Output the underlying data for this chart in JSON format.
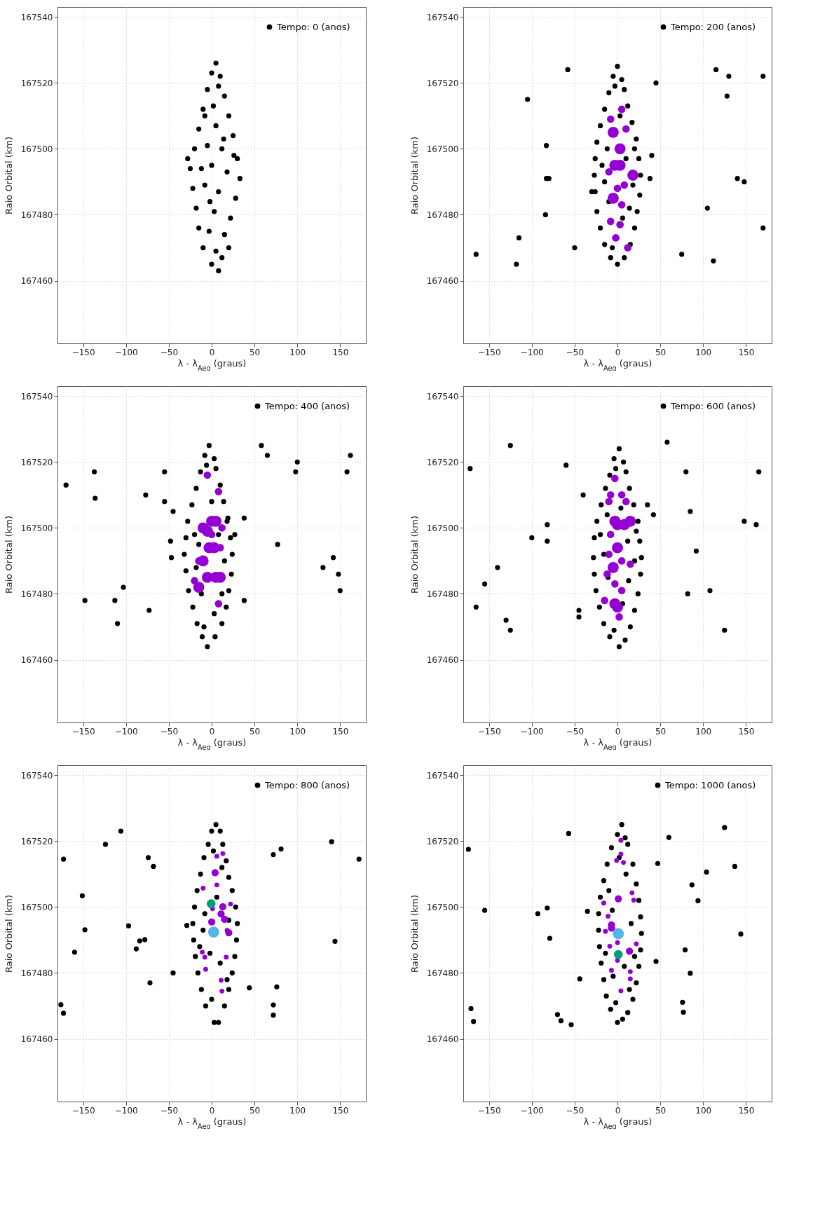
{
  "chart_data": [
    {
      "type": "scatter",
      "xlabel": "λ - λ$_{Aeg}$ (graus)",
      "ylabel": "Raio Orbital (km)",
      "xlim": [
        -180,
        180
      ],
      "ylim": [
        167441,
        167543
      ],
      "xticks": [
        -150,
        -100,
        -50,
        0,
        50,
        100,
        150
      ],
      "yticks": [
        167460,
        167480,
        167500,
        167520,
        167540
      ],
      "grid": true,
      "legend": "top right",
      "marker": "circle",
      "series": [
        {
          "name": "Tempo: 0 (anos)",
          "color": "#000000",
          "x": [
            5,
            0,
            10,
            -5,
            8,
            15,
            -10,
            2,
            20,
            -15,
            5,
            25,
            -20,
            -5,
            12,
            30,
            -25,
            0,
            18,
            33,
            -22,
            -8,
            8,
            28,
            -18,
            3,
            22,
            -15,
            -3,
            15,
            -10,
            5,
            12,
            0,
            8,
            -28,
            26,
            -12,
            14,
            -2,
            20,
            -8
          ],
          "values": [
            167526,
            167523,
            167522,
            167518,
            167519,
            167516,
            167512,
            167513,
            167510,
            167506,
            167507,
            167504,
            167500,
            167501,
            167500,
            167497,
            167494,
            167495,
            167493,
            167491,
            167488,
            167489,
            167487,
            167485,
            167482,
            167481,
            167479,
            167476,
            167475,
            167474,
            167470,
            167469,
            167467,
            167465,
            167463,
            167497,
            167498,
            167494,
            167503,
            167484,
            167470,
            167510
          ]
        }
      ]
    },
    {
      "type": "scatter",
      "xlabel": "λ - λ$_{Aeg}$ (graus)",
      "ylabel": "Raio Orbital (km)",
      "xlim": [
        -180,
        180
      ],
      "ylim": [
        167441,
        167543
      ],
      "xticks": [
        -150,
        -100,
        -50,
        0,
        50,
        100,
        150
      ],
      "yticks": [
        167460,
        167480,
        167500,
        167520,
        167540
      ],
      "grid": true,
      "legend": "top right",
      "marker": "circle",
      "series": [
        {
          "name": "Tempo: 200 (anos)",
          "color": "#000000",
          "x": [
            0,
            -5,
            5,
            -10,
            8,
            -15,
            12,
            -20,
            17,
            -24,
            22,
            -26,
            25,
            -27,
            27,
            -26,
            26,
            -24,
            23,
            -20,
            20,
            -15,
            15,
            -8,
            8,
            0,
            -12,
            10,
            -15,
            14,
            -3,
            3,
            -18,
            18,
            -6,
            6,
            -10,
            20,
            -58,
            -105,
            45,
            115,
            130,
            128,
            170,
            -83,
            -83,
            -80,
            -84,
            -115,
            -118,
            -165,
            -50,
            40,
            38,
            140,
            148,
            105,
            170,
            75,
            112,
            -30
          ],
          "values": [
            167525,
            167522,
            167521,
            167517,
            167518,
            167512,
            167513,
            167507,
            167508,
            167502,
            167503,
            167497,
            167497,
            167492,
            167492,
            167487,
            167486,
            167481,
            167481,
            167476,
            167476,
            167471,
            167471,
            167467,
            167467,
            167465,
            167500,
            167497,
            167490,
            167482,
            167519,
            167510,
            167495,
            167489,
            167470,
            167479,
            167484,
            167500,
            167524,
            167515,
            167520,
            167524,
            167522,
            167516,
            167522,
            167501,
            167491,
            167491,
            167480,
            167473,
            167465,
            167468,
            167470,
            167498,
            167491,
            167491,
            167490,
            167482,
            167476,
            167468,
            167466,
            167487
          ]
        },
        {
          "type": "bubble",
          "color": "#9400d3",
          "x": [
            5,
            -8,
            10,
            -5,
            3,
            -3,
            3,
            -10,
            18,
            0,
            8,
            -5,
            5,
            -8,
            3,
            -2,
            12
          ],
          "values": [
            167512,
            167509,
            167506,
            167505,
            167500,
            167495,
            167495,
            167493,
            167492,
            167488,
            167489,
            167485,
            167483,
            167478,
            167477,
            167473,
            167470
          ],
          "sizes": [
            0.45,
            0.45,
            0.45,
            1,
            1,
            1,
            1,
            0.45,
            1,
            0.45,
            0.45,
            1,
            0.45,
            0.45,
            0.45,
            0.45,
            0.45
          ]
        }
      ]
    },
    {
      "type": "scatter",
      "xlabel": "λ - λ$_{Aeg}$ (graus)",
      "ylabel": "Raio Orbital (km)",
      "xlim": [
        -180,
        180
      ],
      "ylim": [
        167441,
        167543
      ],
      "xticks": [
        -150,
        -100,
        -50,
        0,
        50,
        100,
        150
      ],
      "yticks": [
        167460,
        167480,
        167500,
        167520,
        167540
      ],
      "grid": true,
      "legend": "top right",
      "marker": "circle",
      "series": [
        {
          "name": "Tempo: 400 (anos)",
          "color": "#000000",
          "x": [
            -3,
            -8,
            3,
            -13,
            5,
            -18,
            10,
            -23,
            14,
            -28,
            19,
            -30,
            22,
            -32,
            24,
            -30,
            23,
            -27,
            20,
            -22,
            17,
            -17,
            12,
            -11,
            4,
            -5,
            -15,
            8,
            -18,
            12,
            -6,
            0,
            -20,
            15,
            -9,
            3,
            -12,
            18,
            -170,
            -137,
            -136,
            -55,
            -55,
            -77,
            -45,
            -48,
            -47,
            -103,
            -148,
            -113,
            -110,
            -73,
            38,
            38,
            58,
            65,
            100,
            98,
            162,
            158,
            77,
            130,
            142,
            148,
            150,
            27
          ],
          "values": [
            167525,
            167522,
            167521,
            167517,
            167518,
            167512,
            167513,
            167507,
            167508,
            167502,
            167503,
            167497,
            167497,
            167492,
            167492,
            167487,
            167486,
            167481,
            167481,
            167476,
            167476,
            167471,
            167471,
            167467,
            167467,
            167464,
            167495,
            167498,
            167488,
            167480,
            167519,
            167508,
            167498,
            167490,
            167470,
            167474,
            167480,
            167502,
            167513,
            167517,
            167509,
            167517,
            167508,
            167510,
            167505,
            167496,
            167491,
            167482,
            167478,
            167478,
            167471,
            167475,
            167503,
            167478,
            167525,
            167522,
            167520,
            167517,
            167522,
            167517,
            167495,
            167488,
            167491,
            167486,
            167481,
            167498
          ]
        },
        {
          "type": "bubble",
          "color": "#9400d3",
          "x": [
            -5,
            8,
            -10,
            -5,
            0,
            5,
            12,
            -10,
            -3,
            3,
            10,
            -15,
            -5,
            5,
            10,
            -20,
            -15,
            8,
            0
          ],
          "values": [
            167516,
            167511,
            167500,
            167499,
            167502,
            167502,
            167500,
            167490,
            167494,
            167494,
            167494,
            167490,
            167485,
            167485,
            167485,
            167484,
            167482,
            167477,
            167498
          ],
          "sizes": [
            0.45,
            0.45,
            1,
            1,
            1,
            1,
            0.45,
            1,
            1,
            1,
            0.45,
            0.45,
            1,
            1,
            1,
            0.45,
            1,
            0.45,
            0.45
          ]
        }
      ]
    },
    {
      "type": "scatter",
      "xlabel": "λ - λ$_{Aeg}$ (graus)",
      "ylabel": "Raio Orbital (km)",
      "xlim": [
        -180,
        180
      ],
      "ylim": [
        167441,
        167543
      ],
      "xticks": [
        -150,
        -100,
        -50,
        0,
        50,
        100,
        150
      ],
      "yticks": [
        167460,
        167480,
        167500,
        167520,
        167540
      ],
      "grid": true,
      "legend": "top right",
      "marker": "circle",
      "series": [
        {
          "name": "Tempo: 600 (anos)",
          "color": "#000000",
          "x": [
            2,
            -4,
            7,
            -9,
            10,
            -14,
            14,
            -19,
            19,
            -24,
            24,
            -27,
            26,
            -28,
            28,
            -27,
            27,
            -25,
            24,
            -21,
            20,
            -16,
            15,
            -9,
            9,
            2,
            -12,
            12,
            -16,
            13,
            -2,
            4,
            -20,
            20,
            -4,
            6,
            -11,
            22,
            -172,
            -125,
            -60,
            -40,
            -100,
            -82,
            -82,
            -140,
            -155,
            -165,
            -130,
            -125,
            -45,
            -45,
            35,
            42,
            58,
            80,
            85,
            92,
            82,
            108,
            148,
            162,
            165,
            125
          ],
          "values": [
            167524,
            167521,
            167520,
            167516,
            167517,
            167512,
            167512,
            167507,
            167507,
            167502,
            167502,
            167497,
            167496,
            167491,
            167491,
            167486,
            167486,
            167481,
            167480,
            167476,
            167475,
            167471,
            167470,
            167467,
            167466,
            167464,
            167504,
            167496,
            167492,
            167484,
            167518,
            167506,
            167498,
            167490,
            167469,
            167477,
            167485,
            167499,
            167518,
            167525,
            167519,
            167510,
            167497,
            167501,
            167496,
            167488,
            167483,
            167476,
            167472,
            167469,
            167475,
            167473,
            167507,
            167504,
            167526,
            167517,
            167505,
            167493,
            167480,
            167481,
            167502,
            167501,
            167517,
            167469
          ]
        },
        {
          "type": "bubble",
          "color": "#9400d3",
          "x": [
            -3,
            5,
            -8,
            10,
            -10,
            -3,
            0,
            8,
            15,
            -8,
            0,
            -10,
            5,
            -5,
            -12,
            -3,
            5,
            -3,
            0,
            2,
            -15,
            15
          ],
          "values": [
            167515,
            167510,
            167510,
            167508,
            167508,
            167502,
            167501,
            167501,
            167502,
            167498,
            167494,
            167492,
            167490,
            167488,
            167486,
            167483,
            167481,
            167477,
            167476,
            167473,
            167478,
            167489
          ],
          "sizes": [
            0.45,
            0.45,
            0.45,
            0.45,
            0.45,
            1,
            1,
            1,
            1,
            0.45,
            1,
            0.45,
            0.45,
            1,
            0.45,
            0.45,
            0.45,
            1,
            1,
            0.45,
            0.45,
            0.45
          ]
        }
      ]
    },
    {
      "type": "scatter",
      "xlabel": "λ - λ$_{Aeg}$ (graus)",
      "ylabel": "Raio Orbital (km)",
      "xlim": [
        -180,
        180
      ],
      "ylim": [
        167441,
        167543
      ],
      "xticks": [
        -150,
        -100,
        -50,
        0,
        50,
        100,
        150
      ],
      "yticks": [
        167460,
        167480,
        167500,
        167520,
        167540
      ],
      "grid": true,
      "legend": "top right",
      "marker": "circle",
      "series": [
        {
          "name": "Tempo: 800 (anos)",
          "color": "#000000",
          "x": [
            5,
            0,
            10,
            -4,
            13,
            -9,
            17,
            -13,
            20,
            -17,
            24,
            -20,
            28,
            -22,
            30,
            -21,
            29,
            -19,
            27,
            -16,
            24,
            -12,
            20,
            -7,
            15,
            3,
            8,
            -8,
            6,
            -14,
            18,
            2,
            12,
            -10,
            20,
            0,
            10,
            -2,
            -173,
            -124,
            -106,
            -74,
            -68,
            -151,
            -148,
            -160,
            -97,
            -84,
            -78,
            -88,
            -72,
            -45,
            -29,
            72,
            81,
            140,
            172,
            144,
            44,
            76,
            72,
            72,
            -176,
            -173
          ],
          "values": [
            167525,
            167523,
            167523,
            167519,
            167519,
            167515,
            167514,
            167510,
            167509,
            167505,
            167505,
            167500,
            167500,
            167495,
            167495,
            167490,
            167490,
            167485,
            167485,
            167480,
            167480,
            167475,
            167475,
            167470,
            167470,
            167465,
            167465,
            167498,
            167503,
            167488,
            167478,
            167517,
            167512,
            167493,
            167496,
            167472,
            167483,
            167486,
            167514.5,
            167519,
            167523,
            167515,
            167512.3,
            167503.4,
            167493.1,
            167486.3,
            167494.3,
            167489.7,
            167490.1,
            167487.3,
            167477,
            167480,
            167494.4,
            167515.9,
            167517.6,
            167519.8,
            167514.5,
            167489.6,
            167475.5,
            167475.8,
            167470.3,
            167467.2,
            167470.4,
            167467.8
          ]
        },
        {
          "type": "bubble",
          "color": "#9400d3",
          "x": [
            6,
            13,
            4,
            6,
            -10,
            1,
            13,
            22,
            11,
            15,
            0,
            18,
            20,
            -11,
            -8,
            17,
            -7,
            11,
            12
          ],
          "values": [
            167515.4,
            167516.2,
            167510.4,
            167506.7,
            167505.7,
            167499.5,
            167500.1,
            167500.9,
            167497.9,
            167496.3,
            167495.5,
            167492.9,
            167492.2,
            167486.3,
            167484.8,
            167484.8,
            167481.1,
            167477.8,
            167474.5
          ],
          "sizes": [
            0.19,
            0.19,
            0.42,
            0.19,
            0.19,
            0.19,
            0.42,
            0.19,
            0.42,
            0.42,
            0.42,
            0.19,
            0.42,
            0.19,
            0.19,
            0.19,
            0.19,
            0.19,
            0.19
          ]
        },
        {
          "type": "bubble",
          "color": "#009e73",
          "x": [
            -0.6
          ],
          "values": [
            167501
          ],
          "sizes": [
            0.63
          ]
        },
        {
          "type": "bubble",
          "color": "#56b4e9",
          "x": [
            2.3
          ],
          "values": [
            167492.4
          ],
          "sizes": [
            1
          ]
        }
      ]
    },
    {
      "type": "scatter",
      "xlabel": "λ - λ$_{Aeg}$ (graus)",
      "ylabel": "Raio Orbital (km)",
      "xlim": [
        -180,
        180
      ],
      "ylim": [
        167441,
        167543
      ],
      "xticks": [
        -150,
        -100,
        -50,
        0,
        50,
        100,
        150
      ],
      "yticks": [
        167460,
        167480,
        167500,
        167520,
        167540
      ],
      "grid": true,
      "legend": "top right",
      "marker": "circle",
      "series": [
        {
          "name": "Tempo: 1000 (anos)",
          "color": "#000000",
          "x": [
            5,
            0,
            9,
            -7,
            12,
            -12,
            18,
            -16,
            22,
            -20,
            25,
            -22,
            27,
            -22,
            28,
            -21,
            27,
            -19,
            25,
            -16,
            22,
            -13,
            18,
            -8,
            12,
            0,
            6,
            -10,
            10,
            -14,
            16,
            2,
            -5,
            20,
            -6,
            14,
            -2,
            8,
            -174,
            -155,
            -93,
            -82,
            -79,
            -57,
            -35,
            -44,
            -70,
            -66,
            -54,
            -171,
            -168,
            47,
            60,
            87,
            94,
            104,
            125,
            137,
            144,
            79,
            45,
            85,
            76,
            77
          ],
          "values": [
            167525,
            167522,
            167521,
            167518,
            167519,
            167513,
            167513,
            167508,
            167507,
            167503,
            167502,
            167498,
            167497,
            167493,
            167492,
            167488,
            167487,
            167483,
            167482,
            167478,
            167477,
            167473,
            167472,
            167469,
            167468,
            167465,
            167466,
            167505,
            167510,
            167486,
            167495,
            167515,
            167479,
            167485,
            167499,
            167475,
            167471,
            167482,
            167517.5,
            167499,
            167498,
            167499.7,
            167490.5,
            167522.3,
            167498.7,
            167478.2,
            167467.4,
            167465.5,
            167464.3,
            167469.2,
            167465.3,
            167513.2,
            167521.1,
            167506.7,
            167501.9,
            167510.6,
            167524.1,
            167512.3,
            167491.8,
            167487,
            167483.5,
            167479.9,
            167471.1,
            167468.1
          ]
        },
        {
          "type": "bubble",
          "color": "#9400d3",
          "x": [
            4,
            4,
            -1,
            7,
            17,
            19,
            1,
            -16,
            -11,
            -7,
            -7,
            -14,
            0,
            22,
            14,
            -9,
            0,
            -7,
            15,
            15,
            4
          ],
          "values": [
            167520.2,
            167516,
            167514.1,
            167513.5,
            167504.3,
            167502.1,
            167502.5,
            167501.2,
            167497.2,
            167494.6,
            167493.6,
            167492.6,
            167489.2,
            167488.8,
            167486.6,
            167488.1,
            167483.8,
            167480.8,
            167480.4,
            167478.2,
            167474.6
          ],
          "sizes": [
            0.19,
            0.19,
            0.19,
            0.19,
            0.19,
            0.19,
            0.42,
            0.19,
            0.19,
            0.42,
            0.42,
            0.19,
            0.19,
            0.19,
            0.42,
            0.19,
            0.19,
            0.19,
            0.19,
            0.19,
            0.19
          ]
        },
        {
          "type": "bubble",
          "color": "#009e73",
          "x": [
            1
          ],
          "values": [
            167485.6
          ],
          "sizes": [
            0.63
          ]
        },
        {
          "type": "bubble",
          "color": "#56b4e9",
          "x": [
            1
          ],
          "values": [
            167491.9
          ],
          "sizes": [
            1
          ]
        }
      ]
    }
  ]
}
